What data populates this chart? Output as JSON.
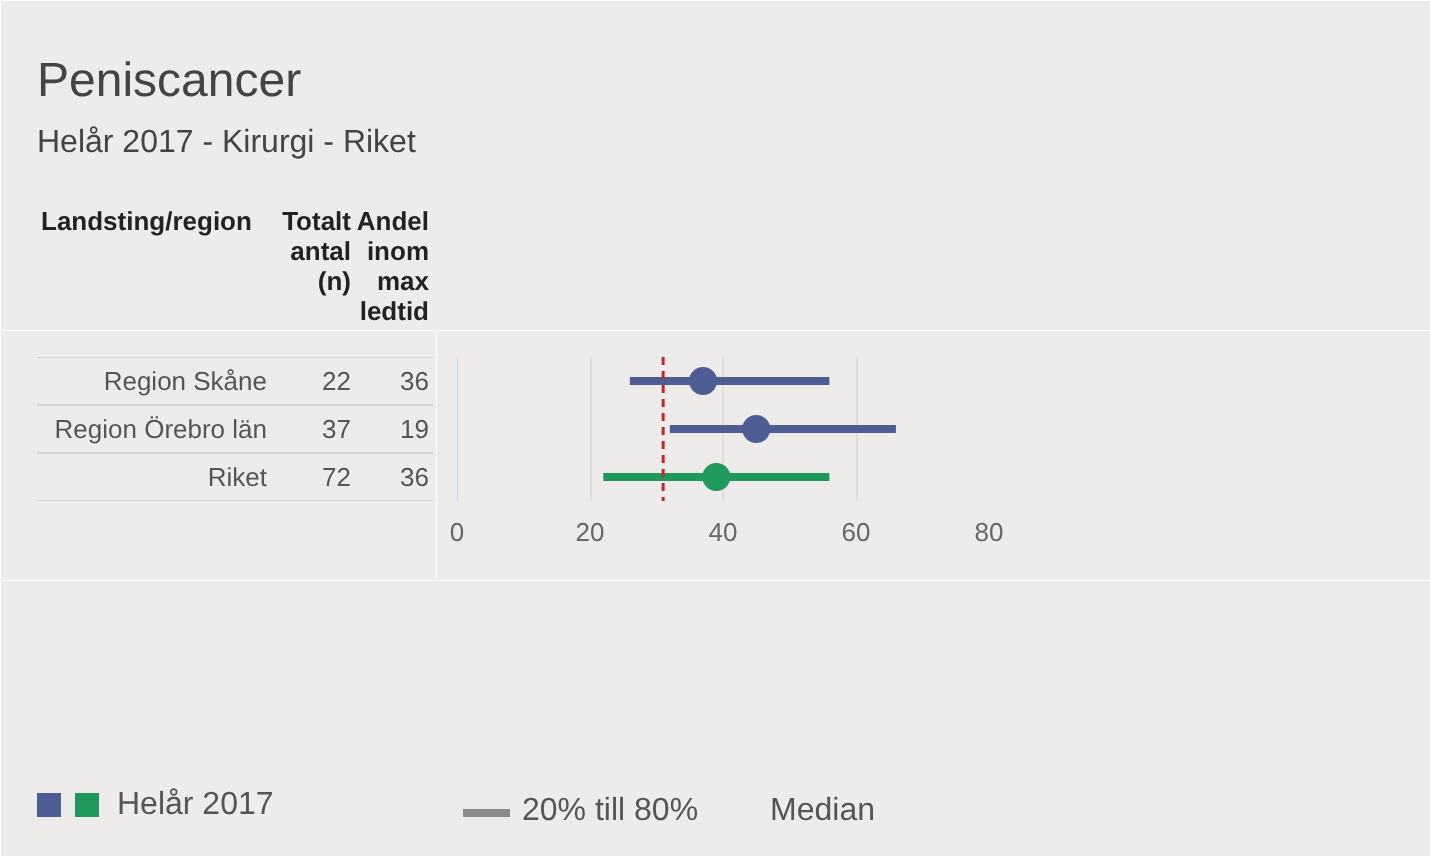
{
  "chart_data": [
    {
      "type": "other",
      "title": "Peniscancer",
      "subtitle": "Helår 2017 - Kirurgi - Riket",
      "xlabel": "Landsting/region",
      "categories": [
        "Region Skåne",
        "Region Örebro län",
        "Riket"
      ],
      "data_labels": true,
      "series": [
        {
          "name": "Totalt antal (n)",
          "values": [
            22,
            37,
            72
          ]
        },
        {
          "name": "Andel inom max ledtid",
          "values": [
            36,
            19,
            36
          ]
        }
      ]
    },
    {
      "type": "scatter",
      "orientation": "horizontal",
      "categories": [
        null,
        null,
        null
      ],
      "marker": "circle",
      "grid": "x",
      "legend": "bottom left",
      "xlim": [
        0,
        80
      ],
      "xticks": [
        0,
        20,
        40,
        60,
        80
      ],
      "series": [
        {
          "name": "Helår 2017",
          "colors": [
            "#4e5d94",
            "#4e5d94",
            "#1f9a5c"
          ],
          "values": [
            37,
            45,
            39
          ],
          "errors": [
            [
              26,
              56
            ],
            [
              32,
              66
            ],
            [
              22,
              56
            ]
          ]
        }
      ],
      "ref_lines": [
        {
          "axis": "x",
          "value": 31,
          "color": "#c0272d",
          "line_style": "dashed"
        }
      ],
      "annotations": [
        "20% till 80%",
        "Median"
      ]
    }
  ]
}
